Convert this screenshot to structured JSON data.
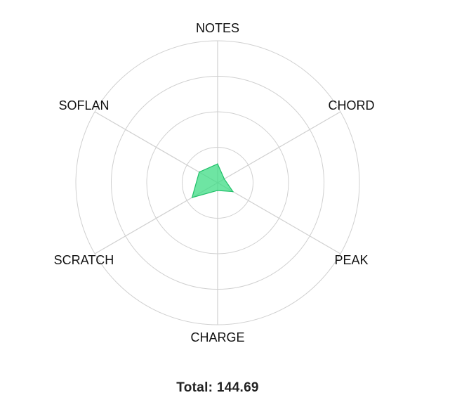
{
  "chart_data": {
    "type": "radar",
    "axes": [
      "NOTES",
      "CHORD",
      "PEAK",
      "CHARGE",
      "SCRATCH",
      "SOFLAN"
    ],
    "values": [
      26.52,
      10.84,
      24.91,
      10.86,
      41.57,
      29.99
    ],
    "rlim": [
      0,
      200
    ],
    "ring_step": 50,
    "grid": true,
    "colors": {
      "fill": "#3ddc84",
      "stroke": "#22c06a",
      "grid": "#d0d0d0"
    }
  },
  "total": {
    "label": "Total: 144.69"
  }
}
